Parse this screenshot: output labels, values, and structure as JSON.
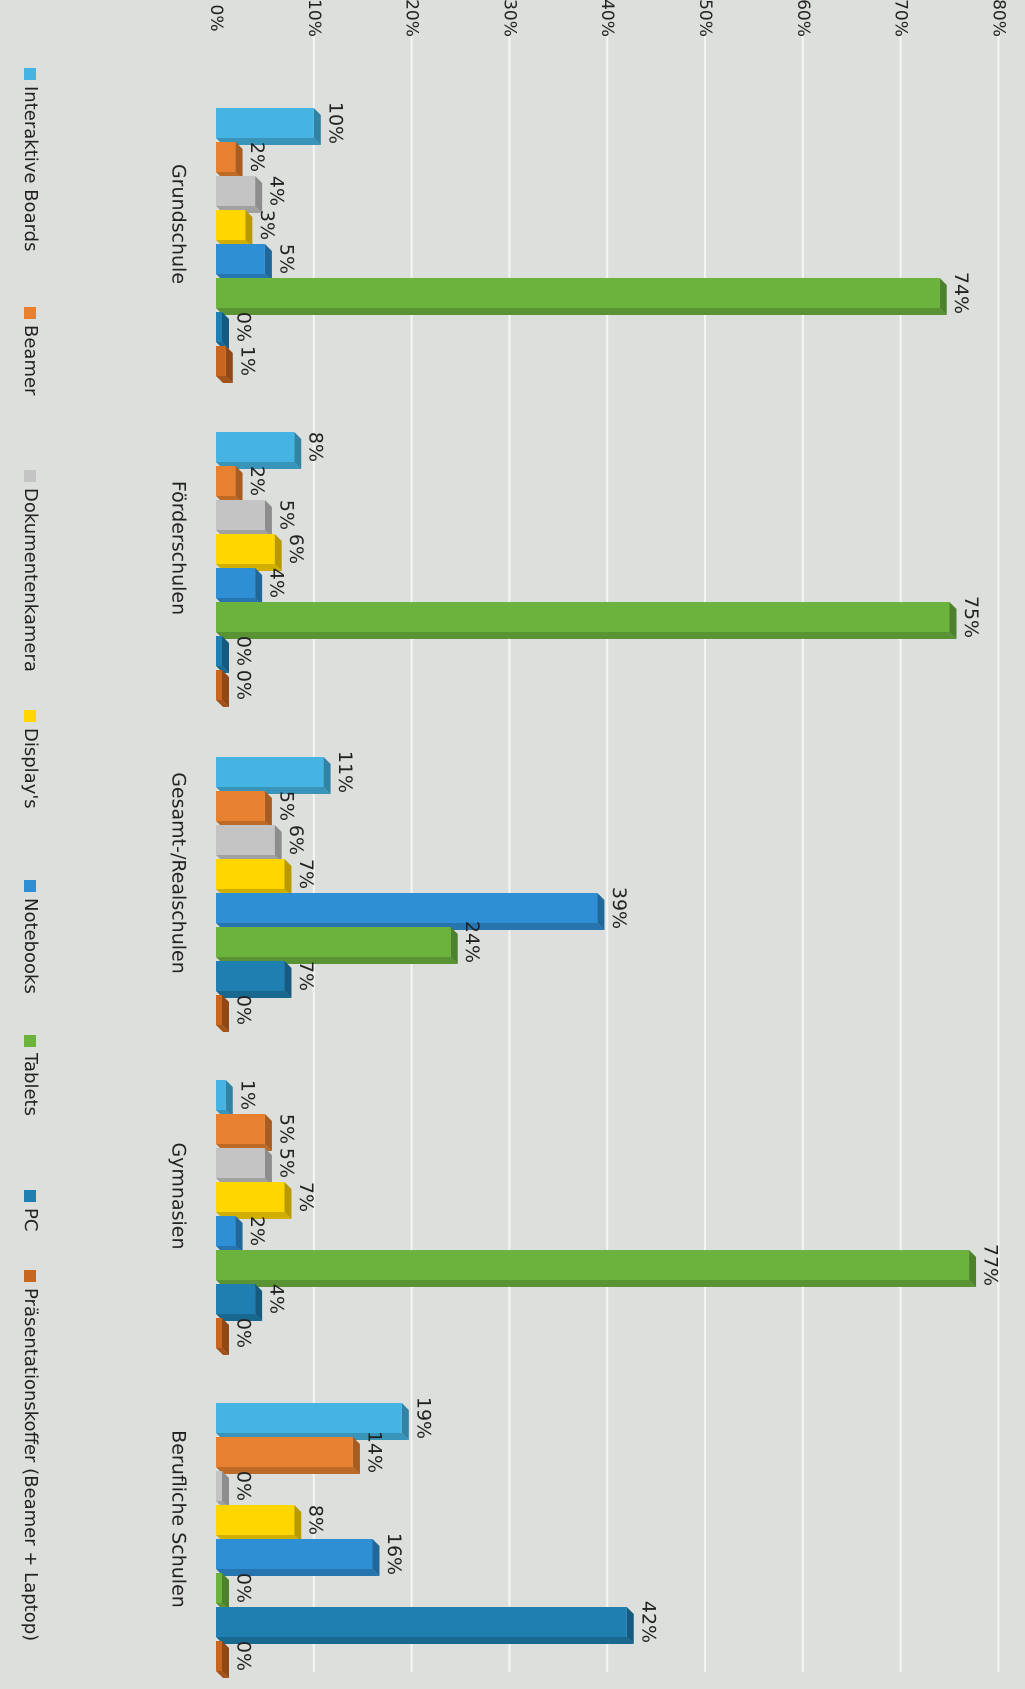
{
  "chart_data": {
    "type": "bar",
    "orientation": "rotated-90-clockwise",
    "title": "",
    "xlabel": "",
    "ylabel": "",
    "ylim": [
      0,
      80
    ],
    "y_ticks": [
      "0%",
      "10%",
      "20%",
      "30%",
      "40%",
      "50%",
      "60%",
      "70%",
      "80%"
    ],
    "grid": true,
    "legend_position": "bottom",
    "categories": [
      "Grundschule",
      "Förderschulen",
      "Gesamt-/Realschulen",
      "Gymnasien",
      "Berufliche Schulen"
    ],
    "series": [
      {
        "name": "Interaktive Boards",
        "color": "#46b4e3",
        "values": [
          10,
          8,
          11,
          1,
          19
        ]
      },
      {
        "name": "Beamer",
        "color": "#e8812f",
        "values": [
          2,
          2,
          5,
          5,
          14
        ]
      },
      {
        "name": "Dokumentenkamera",
        "color": "#c4c4c4",
        "values": [
          4,
          5,
          6,
          5,
          0
        ]
      },
      {
        "name": "Display's",
        "color": "#ffd600",
        "values": [
          3,
          6,
          7,
          7,
          8
        ]
      },
      {
        "name": "Notebooks",
        "color": "#2e8fd4",
        "values": [
          5,
          4,
          39,
          2,
          16
        ]
      },
      {
        "name": "Tablets",
        "color": "#6cb33e",
        "values": [
          74,
          75,
          24,
          77,
          0
        ]
      },
      {
        "name": "PC",
        "color": "#1f7fb0",
        "values": [
          0,
          0,
          7,
          4,
          42
        ]
      },
      {
        "name": "Präsentationskoffer (Beamer + Laptop)",
        "color": "#c8651f",
        "values": [
          1,
          0,
          0,
          0,
          0
        ]
      }
    ]
  }
}
